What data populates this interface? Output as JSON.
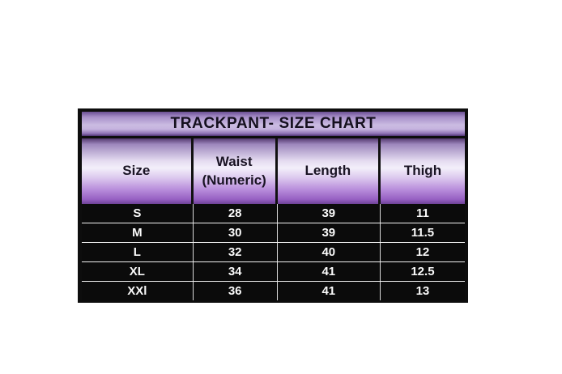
{
  "page": {
    "background": "#ffffff"
  },
  "table_style": {
    "border_color": "#0d0d0d",
    "row_background": "#0b0b0b",
    "row_text_color": "#fafafa",
    "header_text_color": "#1a1424",
    "purple_dark": "#54396f",
    "purple_light": "#f3effa",
    "purple_vivid": "#9660c2"
  },
  "chart_data": {
    "type": "table",
    "title": "TRACKPANT- SIZE CHART",
    "columns": [
      "Size",
      "Waist (Numeric)",
      "Length",
      "Thigh"
    ],
    "rows": [
      [
        "S",
        "28",
        "39",
        "11"
      ],
      [
        "M",
        "30",
        "39",
        "11.5"
      ],
      [
        "L",
        "32",
        "40",
        "12"
      ],
      [
        "XL",
        "34",
        "41",
        "12.5"
      ],
      [
        "XXl",
        "36",
        "41",
        "13"
      ]
    ]
  }
}
